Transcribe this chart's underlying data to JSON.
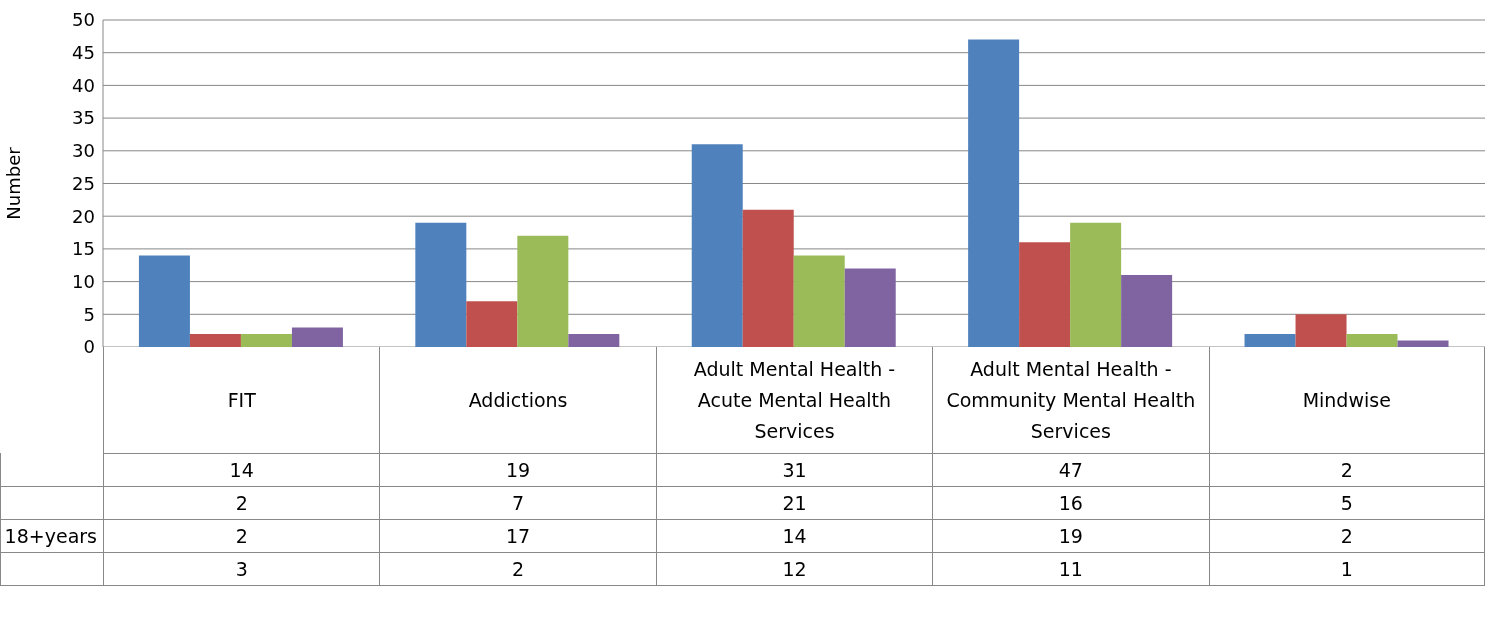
{
  "chart_data": {
    "type": "bar",
    "ylabel": "Number",
    "categories": [
      "FIT",
      "Addictions",
      "Adult Mental Health - Acute Mental Health Services",
      "Adult Mental Health - Community Mental Health Services",
      "Mindwise"
    ],
    "series": [
      {
        "color": "#4f81bd",
        "values": [
          14,
          19,
          31,
          47,
          2
        ]
      },
      {
        "color": "#c0504d",
        "values": [
          2,
          7,
          21,
          16,
          5
        ]
      },
      {
        "name": "18+years",
        "color": "#9bbb59",
        "values": [
          2,
          17,
          14,
          19,
          2
        ]
      },
      {
        "color": "#8064a2",
        "values": [
          3,
          2,
          12,
          11,
          1
        ]
      }
    ],
    "ylim": [
      0,
      50
    ],
    "yticks": [
      0,
      5,
      10,
      15,
      20,
      25,
      30,
      35,
      40,
      45,
      50
    ],
    "grid": "y",
    "legend": false,
    "data_labels": true
  }
}
